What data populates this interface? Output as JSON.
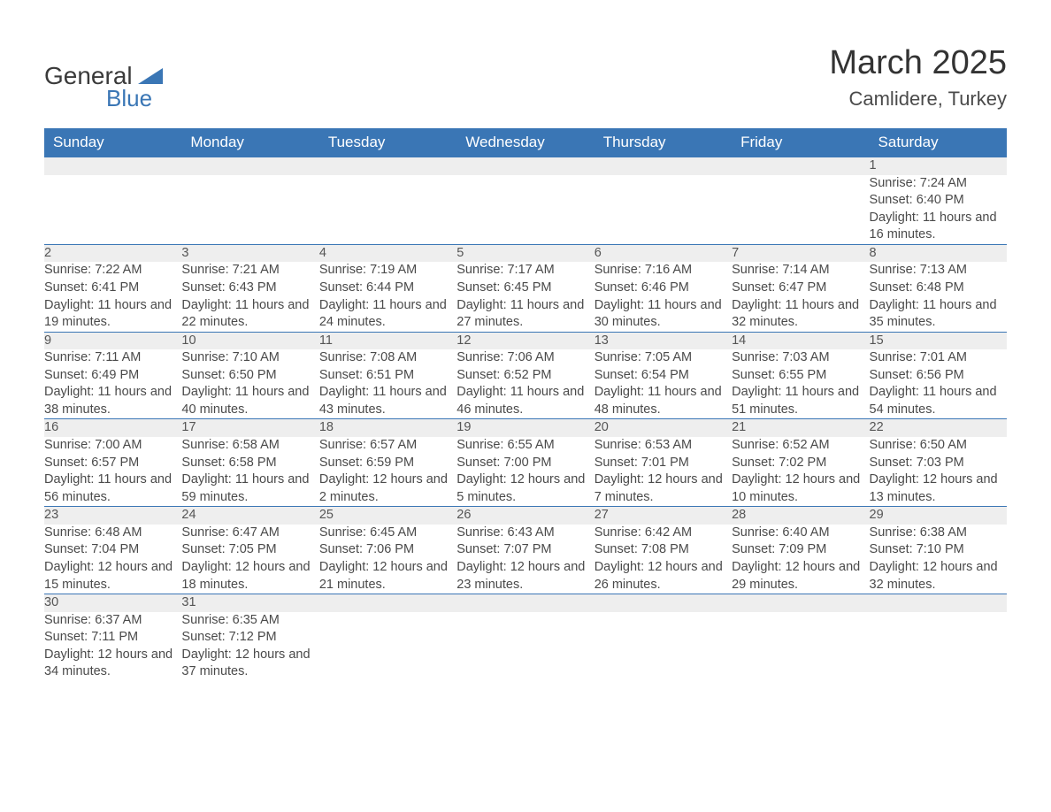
{
  "logo": {
    "text1": "General",
    "text2": "Blue",
    "triangle_color": "#3a76b5"
  },
  "title": "March 2025",
  "location": "Camlidere, Turkey",
  "colors": {
    "header_bg": "#3a76b5",
    "header_text": "#ffffff",
    "daynum_bg": "#eeeeee",
    "row_border": "#3a76b5",
    "body_text": "#4a4a4a"
  },
  "fonts": {
    "title_size": 38,
    "location_size": 22,
    "header_size": 17,
    "cell_size": 14.5
  },
  "weekdays": [
    "Sunday",
    "Monday",
    "Tuesday",
    "Wednesday",
    "Thursday",
    "Friday",
    "Saturday"
  ],
  "weeks": [
    [
      null,
      null,
      null,
      null,
      null,
      null,
      {
        "n": "1",
        "sr": "Sunrise: 7:24 AM",
        "ss": "Sunset: 6:40 PM",
        "dl": "Daylight: 11 hours and 16 minutes."
      }
    ],
    [
      {
        "n": "2",
        "sr": "Sunrise: 7:22 AM",
        "ss": "Sunset: 6:41 PM",
        "dl": "Daylight: 11 hours and 19 minutes."
      },
      {
        "n": "3",
        "sr": "Sunrise: 7:21 AM",
        "ss": "Sunset: 6:43 PM",
        "dl": "Daylight: 11 hours and 22 minutes."
      },
      {
        "n": "4",
        "sr": "Sunrise: 7:19 AM",
        "ss": "Sunset: 6:44 PM",
        "dl": "Daylight: 11 hours and 24 minutes."
      },
      {
        "n": "5",
        "sr": "Sunrise: 7:17 AM",
        "ss": "Sunset: 6:45 PM",
        "dl": "Daylight: 11 hours and 27 minutes."
      },
      {
        "n": "6",
        "sr": "Sunrise: 7:16 AM",
        "ss": "Sunset: 6:46 PM",
        "dl": "Daylight: 11 hours and 30 minutes."
      },
      {
        "n": "7",
        "sr": "Sunrise: 7:14 AM",
        "ss": "Sunset: 6:47 PM",
        "dl": "Daylight: 11 hours and 32 minutes."
      },
      {
        "n": "8",
        "sr": "Sunrise: 7:13 AM",
        "ss": "Sunset: 6:48 PM",
        "dl": "Daylight: 11 hours and 35 minutes."
      }
    ],
    [
      {
        "n": "9",
        "sr": "Sunrise: 7:11 AM",
        "ss": "Sunset: 6:49 PM",
        "dl": "Daylight: 11 hours and 38 minutes."
      },
      {
        "n": "10",
        "sr": "Sunrise: 7:10 AM",
        "ss": "Sunset: 6:50 PM",
        "dl": "Daylight: 11 hours and 40 minutes."
      },
      {
        "n": "11",
        "sr": "Sunrise: 7:08 AM",
        "ss": "Sunset: 6:51 PM",
        "dl": "Daylight: 11 hours and 43 minutes."
      },
      {
        "n": "12",
        "sr": "Sunrise: 7:06 AM",
        "ss": "Sunset: 6:52 PM",
        "dl": "Daylight: 11 hours and 46 minutes."
      },
      {
        "n": "13",
        "sr": "Sunrise: 7:05 AM",
        "ss": "Sunset: 6:54 PM",
        "dl": "Daylight: 11 hours and 48 minutes."
      },
      {
        "n": "14",
        "sr": "Sunrise: 7:03 AM",
        "ss": "Sunset: 6:55 PM",
        "dl": "Daylight: 11 hours and 51 minutes."
      },
      {
        "n": "15",
        "sr": "Sunrise: 7:01 AM",
        "ss": "Sunset: 6:56 PM",
        "dl": "Daylight: 11 hours and 54 minutes."
      }
    ],
    [
      {
        "n": "16",
        "sr": "Sunrise: 7:00 AM",
        "ss": "Sunset: 6:57 PM",
        "dl": "Daylight: 11 hours and 56 minutes."
      },
      {
        "n": "17",
        "sr": "Sunrise: 6:58 AM",
        "ss": "Sunset: 6:58 PM",
        "dl": "Daylight: 11 hours and 59 minutes."
      },
      {
        "n": "18",
        "sr": "Sunrise: 6:57 AM",
        "ss": "Sunset: 6:59 PM",
        "dl": "Daylight: 12 hours and 2 minutes."
      },
      {
        "n": "19",
        "sr": "Sunrise: 6:55 AM",
        "ss": "Sunset: 7:00 PM",
        "dl": "Daylight: 12 hours and 5 minutes."
      },
      {
        "n": "20",
        "sr": "Sunrise: 6:53 AM",
        "ss": "Sunset: 7:01 PM",
        "dl": "Daylight: 12 hours and 7 minutes."
      },
      {
        "n": "21",
        "sr": "Sunrise: 6:52 AM",
        "ss": "Sunset: 7:02 PM",
        "dl": "Daylight: 12 hours and 10 minutes."
      },
      {
        "n": "22",
        "sr": "Sunrise: 6:50 AM",
        "ss": "Sunset: 7:03 PM",
        "dl": "Daylight: 12 hours and 13 minutes."
      }
    ],
    [
      {
        "n": "23",
        "sr": "Sunrise: 6:48 AM",
        "ss": "Sunset: 7:04 PM",
        "dl": "Daylight: 12 hours and 15 minutes."
      },
      {
        "n": "24",
        "sr": "Sunrise: 6:47 AM",
        "ss": "Sunset: 7:05 PM",
        "dl": "Daylight: 12 hours and 18 minutes."
      },
      {
        "n": "25",
        "sr": "Sunrise: 6:45 AM",
        "ss": "Sunset: 7:06 PM",
        "dl": "Daylight: 12 hours and 21 minutes."
      },
      {
        "n": "26",
        "sr": "Sunrise: 6:43 AM",
        "ss": "Sunset: 7:07 PM",
        "dl": "Daylight: 12 hours and 23 minutes."
      },
      {
        "n": "27",
        "sr": "Sunrise: 6:42 AM",
        "ss": "Sunset: 7:08 PM",
        "dl": "Daylight: 12 hours and 26 minutes."
      },
      {
        "n": "28",
        "sr": "Sunrise: 6:40 AM",
        "ss": "Sunset: 7:09 PM",
        "dl": "Daylight: 12 hours and 29 minutes."
      },
      {
        "n": "29",
        "sr": "Sunrise: 6:38 AM",
        "ss": "Sunset: 7:10 PM",
        "dl": "Daylight: 12 hours and 32 minutes."
      }
    ],
    [
      {
        "n": "30",
        "sr": "Sunrise: 6:37 AM",
        "ss": "Sunset: 7:11 PM",
        "dl": "Daylight: 12 hours and 34 minutes."
      },
      {
        "n": "31",
        "sr": "Sunrise: 6:35 AM",
        "ss": "Sunset: 7:12 PM",
        "dl": "Daylight: 12 hours and 37 minutes."
      },
      null,
      null,
      null,
      null,
      null
    ]
  ]
}
